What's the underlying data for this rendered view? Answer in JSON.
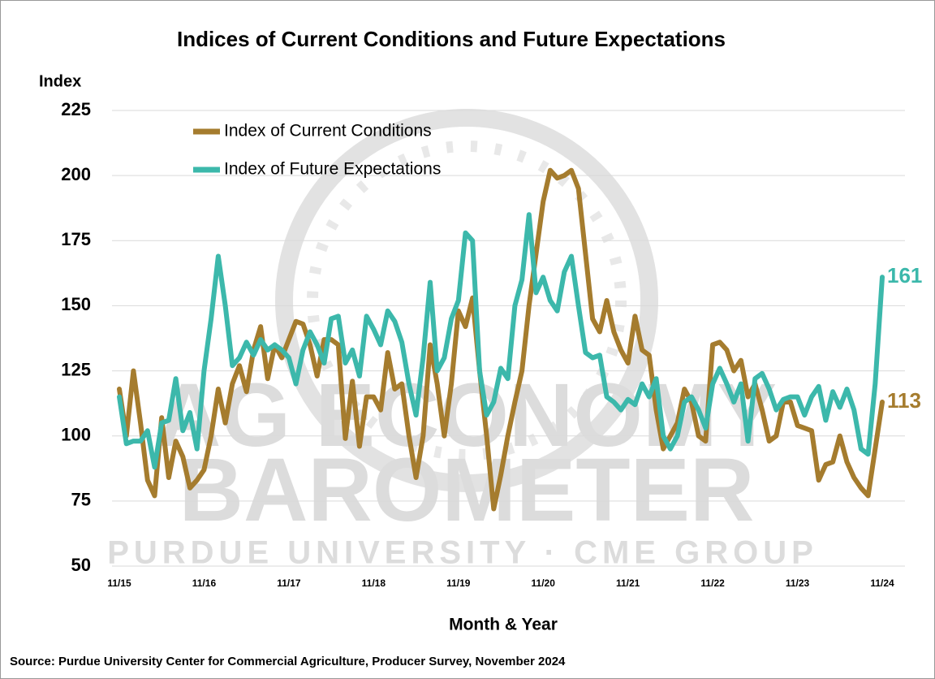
{
  "chart_data": {
    "type": "line",
    "title": "Indices of Current Conditions and Future Expectations",
    "y_label": "Index",
    "x_label": "Month & Year",
    "source": "Source: Purdue University Center for Commercial Agriculture, Producer Survey, November 2024",
    "categories": [
      "11/15",
      null,
      null,
      null,
      null,
      null,
      null,
      null,
      null,
      null,
      null,
      null,
      "11/16",
      null,
      null,
      null,
      null,
      null,
      null,
      null,
      null,
      null,
      null,
      null,
      "11/17",
      null,
      null,
      null,
      null,
      null,
      null,
      null,
      null,
      null,
      null,
      null,
      "11/18",
      null,
      null,
      null,
      null,
      null,
      null,
      null,
      null,
      null,
      null,
      null,
      "11/19",
      null,
      null,
      null,
      null,
      null,
      null,
      null,
      null,
      null,
      null,
      null,
      "11/20",
      null,
      null,
      null,
      null,
      null,
      null,
      null,
      null,
      null,
      null,
      null,
      "11/21",
      null,
      null,
      null,
      null,
      null,
      null,
      null,
      null,
      null,
      null,
      null,
      "11/22",
      null,
      null,
      null,
      null,
      null,
      null,
      null,
      null,
      null,
      null,
      null,
      "11/23",
      null,
      null,
      null,
      null,
      null,
      null,
      null,
      null,
      null,
      null,
      null,
      "11/24"
    ],
    "series": [
      {
        "name": "Index of Current Conditions",
        "color": "#a57c2e",
        "values": [
          118,
          100,
          125,
          105,
          83,
          77,
          107,
          84,
          98,
          92,
          80,
          83,
          87,
          100,
          118,
          105,
          120,
          127,
          117,
          133,
          142,
          122,
          135,
          130,
          137,
          144,
          143,
          135,
          123,
          137,
          137,
          135,
          99,
          121,
          96,
          115,
          115,
          110,
          132,
          118,
          120,
          100,
          84,
          100,
          135,
          120,
          100,
          120,
          148,
          142,
          153,
          125,
          100,
          72,
          85,
          100,
          113,
          125,
          150,
          170,
          190,
          202,
          199,
          200,
          202,
          195,
          170,
          145,
          140,
          152,
          140,
          133,
          128,
          146,
          133,
          131,
          110,
          95,
          100,
          105,
          118,
          113,
          100,
          98,
          135,
          136,
          133,
          125,
          129,
          115,
          120,
          110,
          98,
          100,
          113,
          113,
          104,
          103,
          102,
          83,
          89,
          90,
          100,
          90,
          84,
          80,
          77,
          95,
          113
        ]
      },
      {
        "name": "Index of Future Expectations",
        "color": "#3cb8ab",
        "values": [
          115,
          97,
          98,
          98,
          102,
          88,
          105,
          106,
          122,
          102,
          109,
          95,
          125,
          145,
          169,
          150,
          127,
          130,
          136,
          131,
          137,
          133,
          135,
          133,
          130,
          120,
          133,
          140,
          135,
          128,
          145,
          146,
          128,
          133,
          123,
          146,
          141,
          135,
          148,
          144,
          136,
          120,
          108,
          130,
          159,
          125,
          130,
          145,
          152,
          178,
          175,
          125,
          108,
          113,
          126,
          122,
          150,
          160,
          185,
          155,
          161,
          152,
          148,
          163,
          169,
          150,
          132,
          130,
          131,
          115,
          113,
          110,
          114,
          112,
          120,
          115,
          122,
          100,
          95,
          100,
          113,
          115,
          110,
          103,
          120,
          126,
          120,
          113,
          120,
          98,
          122,
          124,
          118,
          110,
          114,
          115,
          115,
          108,
          115,
          119,
          106,
          117,
          111,
          118,
          110,
          95,
          93,
          120,
          161
        ]
      }
    ],
    "ylim": [
      50,
      225
    ],
    "yticks": [
      50,
      75,
      100,
      125,
      150,
      175,
      200,
      225
    ],
    "grid": true,
    "legend": "top-left"
  },
  "watermark": [
    "AG ECONOMY",
    "BAROMETER",
    "PURDUE UNIVERSITY · CME GROUP"
  ]
}
